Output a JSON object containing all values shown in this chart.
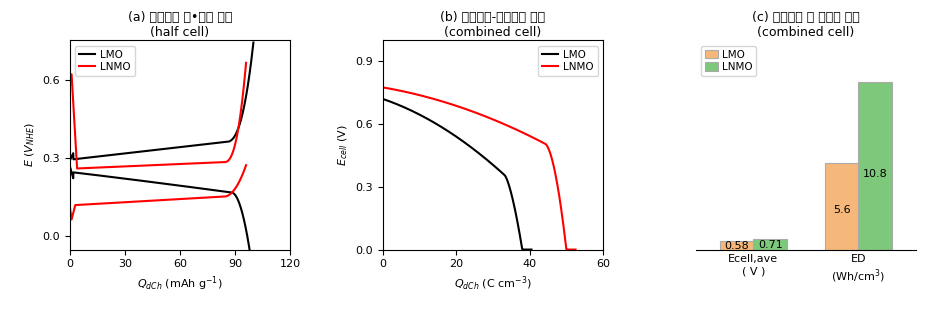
{
  "title_a_line1": "(a) 일정전류 충•방전 공선",
  "title_a_line2": "(half cell)",
  "title_b_line1": "(b) 출력전압-방전용량 특성",
  "title_b_line2": "(combined cell)",
  "title_c_line1": "(c) 출력전압 및 에너지 밀도",
  "title_c_line2": "(combined cell)",
  "panel_a": {
    "xlabel": "$Q_{dCh}$ (mAh g$^{-1}$)",
    "ylabel": "$E$ ($V_{NHE}$)",
    "xlim": [
      0,
      120
    ],
    "ylim": [
      -0.05,
      0.75
    ],
    "yticks": [
      0.0,
      0.3,
      0.6
    ],
    "xticks": [
      0,
      30,
      60,
      90,
      120
    ],
    "lmo_color": "black",
    "lnmo_color": "red"
  },
  "panel_b": {
    "xlabel": "$Q_{dCh}$ (C cm$^{-3}$)",
    "ylabel": "$E_{cell}$ (V)",
    "xlim": [
      0,
      60
    ],
    "ylim": [
      0,
      1.0
    ],
    "yticks": [
      0.0,
      0.3,
      0.6,
      0.9
    ],
    "xticks": [
      0,
      20,
      40,
      60
    ],
    "lmo_color": "black",
    "lnmo_color": "red"
  },
  "panel_c": {
    "lmo_values": [
      0.58,
      5.6
    ],
    "lnmo_values": [
      0.71,
      10.8
    ],
    "lmo_color": "#F5B87A",
    "lnmo_color": "#7DC87A",
    "lmo_label": "LMO",
    "lnmo_label": "LNMO",
    "bar_labels_lmo": [
      "0.58",
      "5.6"
    ],
    "bar_labels_lnmo": [
      "0.71",
      "10.8"
    ],
    "cat1_line1": "Ecell,ave",
    "cat1_line2": "( V )",
    "cat2_line1": "ED",
    "cat2_line2": "(Wh/cm³)"
  }
}
